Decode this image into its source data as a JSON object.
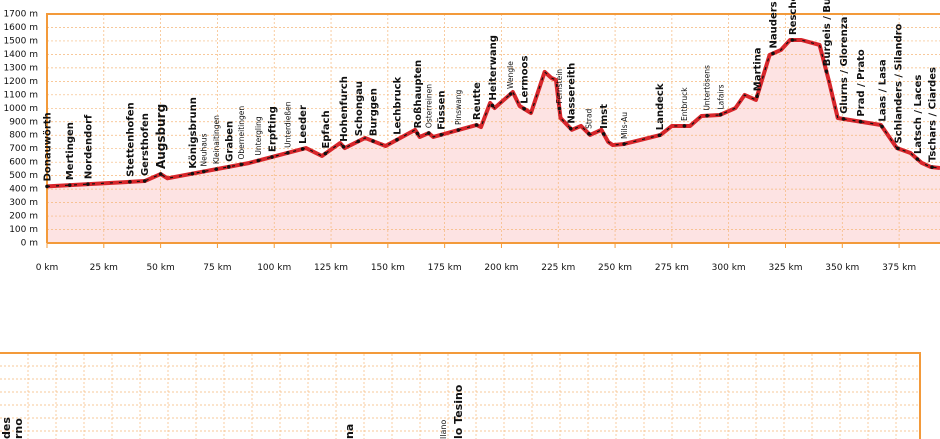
{
  "chart_data": {
    "type": "profile",
    "color": "#d8262b",
    "fill": "#fde3e3",
    "frame_color": "#f39a3a",
    "grid": true,
    "xlim": [
      0,
      393
    ],
    "ylim": [
      0,
      1700
    ],
    "xticks": [
      {
        "value": 0,
        "label": "0 km"
      },
      {
        "value": 25,
        "label": "25 km"
      },
      {
        "value": 50,
        "label": "50 km"
      },
      {
        "value": 75,
        "label": "75 km"
      },
      {
        "value": 100,
        "label": "100 km"
      },
      {
        "value": 125,
        "label": "125 km"
      },
      {
        "value": 150,
        "label": "150 km"
      },
      {
        "value": 175,
        "label": "175 km"
      },
      {
        "value": 200,
        "label": "200 km"
      },
      {
        "value": 225,
        "label": "225 km"
      },
      {
        "value": 250,
        "label": "250 km"
      },
      {
        "value": 275,
        "label": "275 km"
      },
      {
        "value": 300,
        "label": "300 km"
      },
      {
        "value": 325,
        "label": "325 km"
      },
      {
        "value": 350,
        "label": "350 km"
      },
      {
        "value": 375,
        "label": "375 km"
      }
    ],
    "yticks": [
      {
        "value": 0,
        "label": "0 m"
      },
      {
        "value": 100,
        "label": "100 m"
      },
      {
        "value": 200,
        "label": "200 m"
      },
      {
        "value": 300,
        "label": "300 m"
      },
      {
        "value": 400,
        "label": "400 m"
      },
      {
        "value": 500,
        "label": "500 m"
      },
      {
        "value": 600,
        "label": "600 m"
      },
      {
        "value": 700,
        "label": "700 m"
      },
      {
        "value": 800,
        "label": "800 m"
      },
      {
        "value": 900,
        "label": "900 m"
      },
      {
        "value": 1000,
        "label": "1000 m"
      },
      {
        "value": 1100,
        "label": "1100 m"
      },
      {
        "value": 1200,
        "label": "1200 m"
      },
      {
        "value": 1300,
        "label": "1300 m"
      },
      {
        "value": 1400,
        "label": "1400 m"
      },
      {
        "value": 1500,
        "label": "1500 m"
      },
      {
        "value": 1600,
        "label": "1600 m"
      },
      {
        "value": 1700,
        "label": "1700 m"
      }
    ],
    "x": [
      0,
      43,
      50,
      53,
      89,
      114,
      121,
      129,
      131,
      140,
      149,
      162,
      164,
      168,
      170,
      189,
      191,
      195,
      197,
      205,
      208,
      213,
      219,
      222,
      224,
      226,
      231,
      235,
      239,
      244,
      247,
      249,
      254,
      270,
      275,
      283,
      288,
      296,
      303,
      307,
      312,
      318,
      323,
      327,
      332,
      340,
      344,
      348,
      367,
      374,
      380,
      385,
      389,
      393
    ],
    "values": [
      420,
      460,
      512,
      480,
      594,
      705,
      646,
      742,
      705,
      780,
      720,
      840,
      787,
      816,
      787,
      876,
      861,
      1040,
      1002,
      1121,
      1017,
      965,
      1270,
      1225,
      1210,
      928,
      840,
      869,
      802,
      840,
      750,
      727,
      735,
      802,
      869,
      869,
      943,
      950,
      1002,
      1099,
      1062,
      1396,
      1433,
      1507,
      1507,
      1470,
      1210,
      928,
      876,
      705,
      668,
      594,
      564,
      557
    ],
    "places": [
      {
        "name": "Donauwörth",
        "x": 0
      },
      {
        "name": "Mertingen",
        "x": 10
      },
      {
        "name": "Nordendorf",
        "x": 18
      },
      {
        "name": "Stettenhofen",
        "x": 36.5
      },
      {
        "name": "Gersthofen",
        "x": 43
      },
      {
        "name": "Augsburg",
        "x": 50,
        "major": true
      },
      {
        "name": "Königsbrunn",
        "x": 64
      },
      {
        "name": "Neuhaus",
        "x": 69,
        "minor": true
      },
      {
        "name": "Kleinaitingen",
        "x": 74.5,
        "minor": true
      },
      {
        "name": "Graben",
        "x": 80
      },
      {
        "name": "Oberneitingen",
        "x": 85.5,
        "minor": true
      },
      {
        "name": "Untergling",
        "x": 93,
        "minor": true
      },
      {
        "name": "Erpfting",
        "x": 99
      },
      {
        "name": "Unterdießen",
        "x": 106,
        "minor": true
      },
      {
        "name": "Leeder",
        "x": 112.5
      },
      {
        "name": "Epfach",
        "x": 122.5
      },
      {
        "name": "Hohenfurch",
        "x": 130.5
      },
      {
        "name": "Schongau",
        "x": 137
      },
      {
        "name": "Burggen",
        "x": 143.5
      },
      {
        "name": "Lechbruck",
        "x": 154
      },
      {
        "name": "Roßhaupten",
        "x": 163
      },
      {
        "name": "Osterreinen",
        "x": 168,
        "minor": true
      },
      {
        "name": "Füssen",
        "x": 173.5
      },
      {
        "name": "Pinswang",
        "x": 181,
        "minor": true
      },
      {
        "name": "Reutte",
        "x": 189
      },
      {
        "name": "Heiterwang",
        "x": 196
      },
      {
        "name": "Wengle",
        "x": 204,
        "minor": true
      },
      {
        "name": "Lermoos",
        "x": 210
      },
      {
        "name": "Fernstein",
        "x": 225.5,
        "minor": true
      },
      {
        "name": "Nassereith",
        "x": 230.5
      },
      {
        "name": "Strad",
        "x": 238.5,
        "minor": true
      },
      {
        "name": "Imst",
        "x": 245
      },
      {
        "name": "Mils-Au",
        "x": 254,
        "minor": true
      },
      {
        "name": "Landeck",
        "x": 269.5
      },
      {
        "name": "Entbruck",
        "x": 280.5,
        "minor": true
      },
      {
        "name": "Untertösens",
        "x": 290.5,
        "minor": true
      },
      {
        "name": "Lafairs",
        "x": 296.5,
        "minor": true
      },
      {
        "name": "Martina",
        "x": 312.5
      },
      {
        "name": "Nauders",
        "x": 319.5
      },
      {
        "name": "Reschen",
        "x": 328
      },
      {
        "name": "Burgeis / Burgusio",
        "x": 343
      },
      {
        "name": "Glurns / Glorenza",
        "x": 350.5
      },
      {
        "name": "Prad / Prato",
        "x": 358
      },
      {
        "name": "Laas / Lasa",
        "x": 367.5
      },
      {
        "name": "Schlanders / Silandro",
        "x": 374.5
      },
      {
        "name": "Latsch / Laces",
        "x": 383
      },
      {
        "name": "Tschars / Ciardes",
        "x": 389.5
      }
    ]
  },
  "lower_panel": {
    "labels": [
      "des",
      "rno",
      "na",
      "llano",
      "lo Tesino"
    ]
  }
}
